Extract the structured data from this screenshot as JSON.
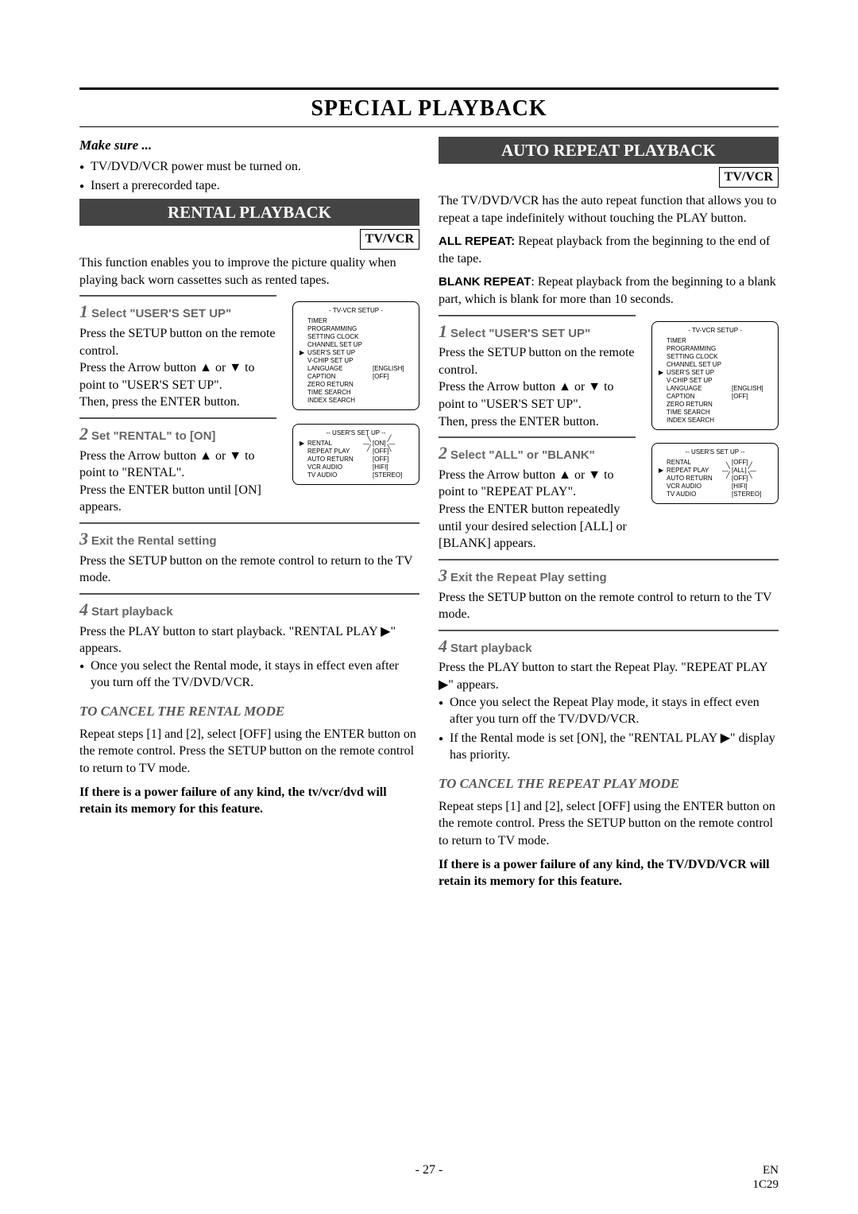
{
  "title": "SPECIAL PLAYBACK",
  "page_number": "- 27 -",
  "footer_right_1": "EN",
  "footer_right_2": "1C29",
  "colors": {
    "banner_bg": "#444444",
    "banner_fg": "#ffffff",
    "step_accent": "#666666",
    "cancel_head": "#555555"
  },
  "typography": {
    "body_family": "Times New Roman",
    "sans_family": "Arial",
    "body_size_pt": 12,
    "title_size_pt": 21,
    "step_num_size_pt": 17
  },
  "left": {
    "make_sure": "Make sure ...",
    "pre_bullets": [
      "TV/DVD/VCR power must be turned on.",
      "Insert a prerecorded tape."
    ],
    "banner": "RENTAL PLAYBACK",
    "tvvcr": "TV/VCR",
    "intro": "This function enables you to improve the picture quality when playing back worn cassettes such as rented tapes.",
    "step1": {
      "num": "1",
      "title": "Select \"USER'S SET UP\"",
      "body1": "Press the SETUP button on the remote control.",
      "body2": "Press the Arrow button ▲ or ▼ to point to \"USER'S SET UP\".",
      "body3": "Then, press the ENTER button."
    },
    "osd1": {
      "title": "- TV-VCR SETUP -",
      "pointer_row": 3,
      "rows": [
        {
          "label": "TIMER PROGRAMMING",
          "val": ""
        },
        {
          "label": "SETTING CLOCK",
          "val": ""
        },
        {
          "label": "CHANNEL SET UP",
          "val": ""
        },
        {
          "label": "USER'S SET UP",
          "val": ""
        },
        {
          "label": "V-CHIP SET UP",
          "val": ""
        },
        {
          "label": "LANGUAGE",
          "val": "[ENGLISH]"
        },
        {
          "label": "CAPTION",
          "val": "[OFF]"
        },
        {
          "label": "ZERO RETURN",
          "val": ""
        },
        {
          "label": "TIME SEARCH",
          "val": ""
        },
        {
          "label": "INDEX SEARCH",
          "val": ""
        }
      ]
    },
    "step2": {
      "num": "2",
      "title": "Set \"RENTAL\" to [ON]",
      "body1": "Press the Arrow button ▲ or ▼ to point to \"RENTAL\".",
      "body2": "Press the ENTER button until [ON] appears."
    },
    "osd2": {
      "title": "-- USER'S SET UP --",
      "pointer_row": 0,
      "highlight_row": 0,
      "rows": [
        {
          "label": "RENTAL",
          "val": "[ON]"
        },
        {
          "label": "REPEAT PLAY",
          "val": "[OFF]"
        },
        {
          "label": "AUTO RETURN",
          "val": "[OFF]"
        },
        {
          "label": "VCR AUDIO",
          "val": "[HIFI]"
        },
        {
          "label": "TV AUDIO",
          "val": "[STEREO]"
        }
      ]
    },
    "step3": {
      "num": "3",
      "title": "Exit the Rental setting",
      "body": "Press the SETUP button on the remote control to return to the TV mode."
    },
    "step4": {
      "num": "4",
      "title": "Start playback",
      "body1": "Press the PLAY button to start playback. \"RENTAL PLAY ▶\" appears.",
      "bullet1": "Once you select the Rental mode, it stays in effect even after you turn off the TV/DVD/VCR."
    },
    "cancel_head": "TO CANCEL THE RENTAL MODE",
    "cancel_body": "Repeat steps [1] and [2], select [OFF] using the ENTER button on the remote control. Press the SETUP button on the remote control to return to TV mode.",
    "cancel_bold": "If there is a power failure of any kind, the tv/vcr/dvd will retain its memory for this feature."
  },
  "right": {
    "banner": "AUTO REPEAT PLAYBACK",
    "tvvcr": "TV/VCR",
    "intro": "The TV/DVD/VCR has the auto repeat function that allows you to repeat a tape indefinitely without touching the PLAY button.",
    "all_repeat_label": "ALL REPEAT:",
    "all_repeat_text": " Repeat playback from the beginning to the end of the tape.",
    "blank_repeat_label": "BLANK REPEAT",
    "blank_repeat_text": ": Repeat playback from the beginning to a blank part, which is blank for more than 10 seconds.",
    "step1": {
      "num": "1",
      "title": "Select \"USER'S SET UP\"",
      "body1": "Press the SETUP button on the remote control.",
      "body2": "Press the Arrow button ▲ or ▼ to point to \"USER'S SET UP\".",
      "body3": "Then, press the ENTER button."
    },
    "osd1": {
      "title": "- TV-VCR SETUP -",
      "pointer_row": 3,
      "rows": [
        {
          "label": "TIMER PROGRAMMING",
          "val": ""
        },
        {
          "label": "SETTING CLOCK",
          "val": ""
        },
        {
          "label": "CHANNEL SET UP",
          "val": ""
        },
        {
          "label": "USER'S SET UP",
          "val": ""
        },
        {
          "label": "V-CHIP SET UP",
          "val": ""
        },
        {
          "label": "LANGUAGE",
          "val": "[ENGLISH]"
        },
        {
          "label": "CAPTION",
          "val": "[OFF]"
        },
        {
          "label": "ZERO RETURN",
          "val": ""
        },
        {
          "label": "TIME SEARCH",
          "val": ""
        },
        {
          "label": "INDEX SEARCH",
          "val": ""
        }
      ]
    },
    "step2": {
      "num": "2",
      "title": "Select \"ALL\" or \"BLANK\"",
      "body1": "Press the Arrow button ▲ or ▼ to point to \"REPEAT PLAY\".",
      "body2": "Press the ENTER button repeatedly until your desired selection [ALL] or [BLANK] appears."
    },
    "osd2": {
      "title": "-- USER'S SET UP --",
      "pointer_row": 1,
      "highlight_row": 1,
      "rows": [
        {
          "label": "RENTAL",
          "val": "[OFF]"
        },
        {
          "label": "REPEAT PLAY",
          "val": "[ALL]"
        },
        {
          "label": "AUTO RETURN",
          "val": "[OFF]"
        },
        {
          "label": "VCR AUDIO",
          "val": "[HIFI]"
        },
        {
          "label": "TV AUDIO",
          "val": "[STEREO]"
        }
      ]
    },
    "step3": {
      "num": "3",
      "title": "Exit the Repeat Play setting",
      "body": "Press the SETUP button on the remote control to return to the TV mode."
    },
    "step4": {
      "num": "4",
      "title": "Start playback",
      "body1": "Press the PLAY button to start the Repeat Play. \"REPEAT PLAY ▶\" appears.",
      "bullets": [
        "Once you select the Repeat Play mode, it stays in effect even after you turn off the TV/DVD/VCR.",
        "If the Rental mode is set [ON], the \"RENTAL PLAY ▶\" display has priority."
      ]
    },
    "cancel_head": "TO CANCEL THE REPEAT PLAY MODE",
    "cancel_body": "Repeat steps [1] and [2], select [OFF] using the ENTER button on the remote control. Press the SETUP button on the remote control to return to TV mode.",
    "cancel_bold": "If there is a power failure of any kind, the TV/DVD/VCR will retain its memory for this feature."
  }
}
